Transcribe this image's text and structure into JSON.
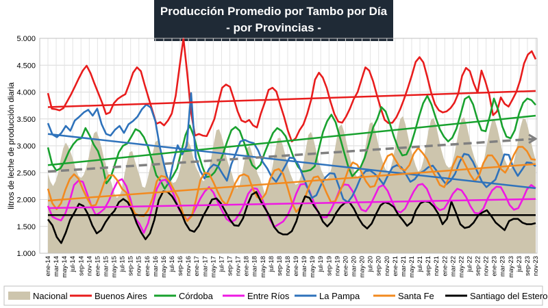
{
  "chart_data": {
    "type": "line",
    "title": "Producción Promedio por Tambo por Día",
    "subtitle": "- por Provincias -",
    "ylabel": "litros de leche de producción diaria",
    "xlabel": "",
    "ylim": [
      1000,
      5000
    ],
    "yticks": [
      1000,
      1500,
      2000,
      2500,
      3000,
      3500,
      4000,
      4500,
      5000
    ],
    "ytick_labels": [
      "1.000",
      "1.500",
      "2.000",
      "2.500",
      "3.000",
      "3.500",
      "4.000",
      "4.500",
      "5.000"
    ],
    "grid": true,
    "legend_position": "bottom",
    "x_tick_labels": [
      "ene-14",
      "mar-14",
      "may-14",
      "jul-14",
      "sep-14",
      "nov-14",
      "ene-15",
      "mar-15",
      "may-15",
      "jul-15",
      "sep-15",
      "nov-15",
      "ene-16",
      "mar-16",
      "may-16",
      "jul-16",
      "sep-16",
      "nov-16",
      "ene-17",
      "mar-17",
      "may-17",
      "jul-17",
      "sep-17",
      "nov-17",
      "ene-18",
      "mar-18",
      "may-18",
      "jul-18",
      "sep-18",
      "nov-18",
      "ene-19",
      "mar-19",
      "may-19",
      "jul-19",
      "sep-19",
      "nov-19",
      "ene-20",
      "mar-20",
      "may-20",
      "jul-20",
      "sep-20",
      "nov-20",
      "ene-21",
      "mar-21",
      "may-21",
      "jul-21",
      "sep-21",
      "nov-21",
      "ene-22",
      "mar-22",
      "may-22",
      "jul-22",
      "sep-22",
      "nov-22",
      "ene-23",
      "mar-23",
      "may-23",
      "jul-23",
      "sep-23",
      "nov-23"
    ],
    "series": [
      {
        "name": "Nacional",
        "type": "area",
        "color": "#cdc5ad",
        "values": [
          2480,
          2330,
          2250,
          2340,
          2500,
          2750,
          2960,
          3060,
          2980,
          2870,
          2720,
          2550,
          2440,
          2400,
          2460,
          2590,
          2790,
          3030,
          3230,
          3270,
          3140,
          2970,
          2750,
          2590,
          2430,
          2290,
          2110,
          2030,
          2070,
          2190,
          2480,
          2700,
          2880,
          2900,
          2730,
          2570,
          2420,
          2240,
          2220,
          2380,
          2590,
          2850,
          3070,
          3100,
          2980,
          2800,
          2590,
          2440,
          2350,
          2310,
          2330,
          2430,
          2620,
          2870,
          3080,
          3080,
          2960,
          2760,
          2590,
          2510,
          2380,
          2340,
          2410,
          2560,
          2790,
          3060,
          3290,
          3310,
          3180,
          2990,
          2770,
          2610,
          2490,
          2310,
          2200,
          2260,
          2460,
          2720,
          2960,
          3000,
          2850,
          2690,
          2490,
          2390,
          2250,
          2100,
          2180,
          2370,
          2630,
          2900,
          3140,
          3150,
          3000,
          2820,
          2610,
          2470,
          2350,
          2270,
          2300,
          2430,
          2660,
          2940,
          3200,
          3260,
          3120,
          2920,
          2700,
          2550,
          2450,
          2370,
          2420,
          2580,
          2830,
          3110,
          3350,
          3400,
          3260,
          3050,
          2830,
          2650,
          2520,
          2420,
          2450,
          2630,
          2880,
          3170,
          3410,
          3440,
          3310,
          3110,
          2880,
          2720,
          2580,
          2510,
          2550,
          2730,
          2990,
          3280,
          3500,
          3550,
          3400,
          3180,
          2950,
          2790,
          2630,
          2520,
          2560,
          2720,
          2990,
          3270,
          3480,
          3520,
          3380,
          3160,
          2930,
          2760,
          2640,
          2590,
          2620,
          2800,
          3050,
          3320,
          3500,
          3530,
          3380,
          3160,
          2940,
          2780,
          2650,
          2560,
          2600,
          2790,
          3050,
          3300,
          3480,
          3480,
          3320,
          3110,
          2890,
          2730,
          2620,
          2570,
          2620,
          2810,
          3080,
          3340,
          3510,
          3500,
          3340,
          3120,
          2900,
          2730
        ]
      },
      {
        "name": "Buenos Aires",
        "type": "line",
        "color": "#e81c1c",
        "values": [
          3980,
          3690,
          3680,
          3660,
          3700,
          3830,
          3960,
          4110,
          4260,
          4400,
          4490,
          4350,
          4160,
          3980,
          3800,
          3590,
          3620,
          3790,
          3870,
          3920,
          3960,
          4150,
          4360,
          4460,
          4390,
          4130,
          3890,
          3650,
          3410,
          3440,
          3380,
          3470,
          3600,
          3930,
          4470,
          5000,
          4340,
          3610,
          3190,
          3220,
          3190,
          3180,
          3330,
          3500,
          3800,
          4080,
          4140,
          4100,
          3880,
          3640,
          3470,
          3440,
          3480,
          3380,
          3340,
          3600,
          3800,
          4040,
          4080,
          4010,
          3770,
          3540,
          3280,
          3080,
          3140,
          3290,
          3400,
          3600,
          3860,
          4230,
          4360,
          4270,
          4080,
          3820,
          3590,
          3450,
          3430,
          3540,
          3690,
          3870,
          4000,
          4230,
          4460,
          4400,
          4200,
          3940,
          3690,
          3480,
          3420,
          3430,
          3530,
          3680,
          3870,
          4080,
          4310,
          4560,
          4650,
          4550,
          4280,
          3990,
          3770,
          3660,
          3620,
          3640,
          3700,
          3800,
          3970,
          4300,
          4450,
          4390,
          4160,
          3990,
          4400,
          4200,
          3950,
          3570,
          3640,
          3900,
          3780,
          3730,
          3860,
          4000,
          4220,
          4530,
          4700,
          4760,
          4610
        ]
      },
      {
        "name": "Córdoba",
        "type": "line",
        "color": "#18a12e",
        "values": [
          2970,
          2660,
          2540,
          2580,
          2710,
          2890,
          3020,
          3110,
          3140,
          3330,
          3190,
          3020,
          2900,
          2670,
          2300,
          2400,
          2640,
          2880,
          3000,
          3040,
          3170,
          3310,
          3270,
          3160,
          2980,
          2720,
          2450,
          2350,
          2200,
          2320,
          2440,
          2580,
          2890,
          3200,
          3380,
          3180,
          2870,
          2620,
          2420,
          2430,
          2510,
          2650,
          2850,
          3080,
          3290,
          3350,
          3280,
          3070,
          2840,
          2640,
          2570,
          2650,
          2870,
          3060,
          3240,
          3330,
          3280,
          3180,
          2980,
          2770,
          2610,
          2520,
          2530,
          2550,
          2620,
          2950,
          3260,
          3460,
          3580,
          3440,
          3170,
          2890,
          2620,
          2430,
          2520,
          2600,
          2780,
          3040,
          3340,
          3500,
          3720,
          3640,
          3420,
          3170,
          2960,
          2820,
          2840,
          3000,
          3260,
          3540,
          3790,
          3930,
          3770,
          3530,
          3310,
          3170,
          3080,
          3150,
          3320,
          3590,
          3870,
          3920,
          3770,
          3500,
          3290,
          3270,
          3550,
          3880,
          3670,
          3360,
          3170,
          3140,
          3290,
          3600,
          3800,
          3880,
          3850,
          3760
        ]
      },
      {
        "name": "Entre Ríos",
        "type": "line",
        "color": "#ee18e3",
        "values": [
          1880,
          1680,
          1640,
          1610,
          1740,
          1980,
          2270,
          2350,
          2330,
          2110,
          1870,
          1710,
          1760,
          1830,
          1980,
          2180,
          2340,
          2380,
          2250,
          1990,
          1650,
          1550,
          1380,
          1560,
          1880,
          2200,
          2350,
          2370,
          2250,
          2070,
          1830,
          1690,
          1620,
          1700,
          1850,
          2020,
          2150,
          2230,
          2130,
          1950,
          1790,
          1640,
          1580,
          1620,
          1740,
          1900,
          2110,
          2210,
          2200,
          2050,
          1840,
          1620,
          1490,
          1540,
          1590,
          1700,
          1880,
          2110,
          2280,
          2290,
          2170,
          1960,
          1770,
          1670,
          1670,
          1810,
          1980,
          2180,
          2280,
          2270,
          2150,
          1960,
          1810,
          1780,
          1890,
          2060,
          2230,
          2270,
          2160,
          1970,
          1790,
          1760,
          1830,
          1990,
          2150,
          2270,
          2290,
          2200,
          2010,
          1870,
          1800,
          1830,
          1960,
          2110,
          2200,
          2170,
          2050,
          1880,
          1750,
          1740,
          1830,
          2020,
          2170,
          2240,
          2230,
          2080,
          1900,
          1810,
          1840,
          2000,
          2190,
          2270,
          2210
        ]
      },
      {
        "name": "La Pampa",
        "type": "line",
        "color": "#2e72bb",
        "values": [
          3420,
          3210,
          3160,
          3240,
          3370,
          3280,
          3470,
          3540,
          3620,
          3670,
          3560,
          3690,
          3400,
          3220,
          3190,
          3300,
          3370,
          3240,
          3400,
          3460,
          3540,
          3680,
          3770,
          3710,
          3460,
          2980,
          2630,
          2290,
          2700,
          3010,
          2840,
          3000,
          3980,
          2790,
          2540,
          2390,
          2570,
          2650,
          2620,
          2480,
          2350,
          2660,
          2860,
          3080,
          3110,
          3070,
          3050,
          2910,
          2700,
          2580,
          2420,
          2330,
          2470,
          2620,
          2780,
          2770,
          2640,
          2440,
          2220,
          2030,
          2080,
          2270,
          2410,
          2490,
          2480,
          2250,
          2010,
          1950,
          2060,
          2230,
          2430,
          2530,
          2540,
          2480,
          2390,
          2280,
          2450,
          2600,
          2640,
          2600,
          2470,
          2330,
          2380,
          2490,
          2530,
          2600,
          2630,
          2520,
          2390,
          2280,
          2350,
          2480,
          2700,
          2850,
          2830,
          2700,
          2510,
          2330,
          2230,
          2300,
          2370,
          2590,
          2840,
          2830,
          2590,
          2440,
          2560,
          2690,
          2680,
          2620
        ]
      },
      {
        "name": "Santa Fe",
        "type": "line",
        "color": "#f28a1f",
        "values": [
          2200,
          1930,
          1820,
          1930,
          2180,
          2380,
          2470,
          2390,
          2190,
          2020,
          1880,
          1900,
          2100,
          2330,
          2450,
          2450,
          2350,
          2200,
          2130,
          1910,
          1740,
          1700,
          1690,
          1800,
          2020,
          2340,
          2440,
          2420,
          2320,
          2170,
          2020,
          1740,
          1600,
          1690,
          1990,
          2360,
          2500,
          2480,
          2320,
          2140,
          1980,
          1900,
          2090,
          2300,
          2440,
          2470,
          2430,
          2210,
          2050,
          2000,
          2110,
          2380,
          2540,
          2570,
          2480,
          2230,
          1950,
          1770,
          1860,
          2030,
          2250,
          2410,
          2430,
          2310,
          2120,
          1950,
          1970,
          2140,
          2330,
          2560,
          2690,
          2650,
          2510,
          2340,
          2230,
          2250,
          2440,
          2640,
          2810,
          2850,
          2710,
          2580,
          2540,
          2640,
          2850,
          2960,
          2870,
          2760,
          2580,
          2430,
          2270,
          2230,
          2390,
          2630,
          2800,
          2780,
          2620,
          2460,
          2340,
          2450,
          2680,
          2820,
          2820,
          2710,
          2570,
          2500,
          2640,
          2830,
          2980,
          2980,
          2900,
          2750,
          2740
        ]
      },
      {
        "name": "Santiago del Estero",
        "type": "line",
        "color": "#000000",
        "values": [
          1630,
          1520,
          1300,
          1190,
          1380,
          1620,
          1760,
          1920,
          1880,
          1730,
          1520,
          1370,
          1430,
          1580,
          1700,
          1790,
          1950,
          2010,
          1950,
          1790,
          1560,
          1390,
          1260,
          1370,
          1620,
          1990,
          2150,
          2140,
          2060,
          1920,
          1770,
          1560,
          1430,
          1400,
          1510,
          1690,
          1840,
          2000,
          2020,
          1930,
          1780,
          1630,
          1520,
          1510,
          1650,
          1900,
          2090,
          2140,
          1970,
          1830,
          1690,
          1490,
          1390,
          1350,
          1350,
          1410,
          1590,
          1860,
          2060,
          2030,
          1880,
          1770,
          1590,
          1500,
          1590,
          1750,
          1870,
          1940,
          1950,
          1830,
          1660,
          1530,
          1460,
          1550,
          1730,
          1890,
          1950,
          1920,
          1860,
          1720,
          1620,
          1510,
          1580,
          1800,
          1930,
          1970,
          1950,
          1870,
          1740,
          1540,
          1640,
          1960,
          1760,
          1540,
          1470,
          1490,
          1570,
          1700,
          1760,
          1800,
          1690,
          1570,
          1500,
          1430,
          1600,
          1640,
          1640,
          1570,
          1540,
          1540,
          1560
        ]
      }
    ],
    "trendlines": [
      {
        "series": "Buenos Aires",
        "color": "#e81c1c",
        "start": 3720,
        "end": 4020,
        "style": "solid"
      },
      {
        "series": "Córdoba",
        "color": "#18a12e",
        "start": 2640,
        "end": 3560,
        "style": "solid"
      },
      {
        "series": "La Pampa",
        "color": "#2e72bb",
        "start": 3220,
        "end": 2210,
        "style": "solid"
      },
      {
        "series": "Santa Fe",
        "color": "#f28a1f",
        "start": 1980,
        "end": 2660,
        "style": "solid"
      },
      {
        "series": "Entre Ríos",
        "color": "#ee18e3",
        "start": 1840,
        "end": 2010,
        "style": "solid"
      },
      {
        "series": "Santiago del Estero",
        "color": "#000000",
        "start": 1710,
        "end": 1710,
        "style": "solid"
      },
      {
        "series": "Nacional",
        "color": "#808080",
        "start": 2520,
        "end": 3130,
        "style": "dashed"
      }
    ]
  }
}
